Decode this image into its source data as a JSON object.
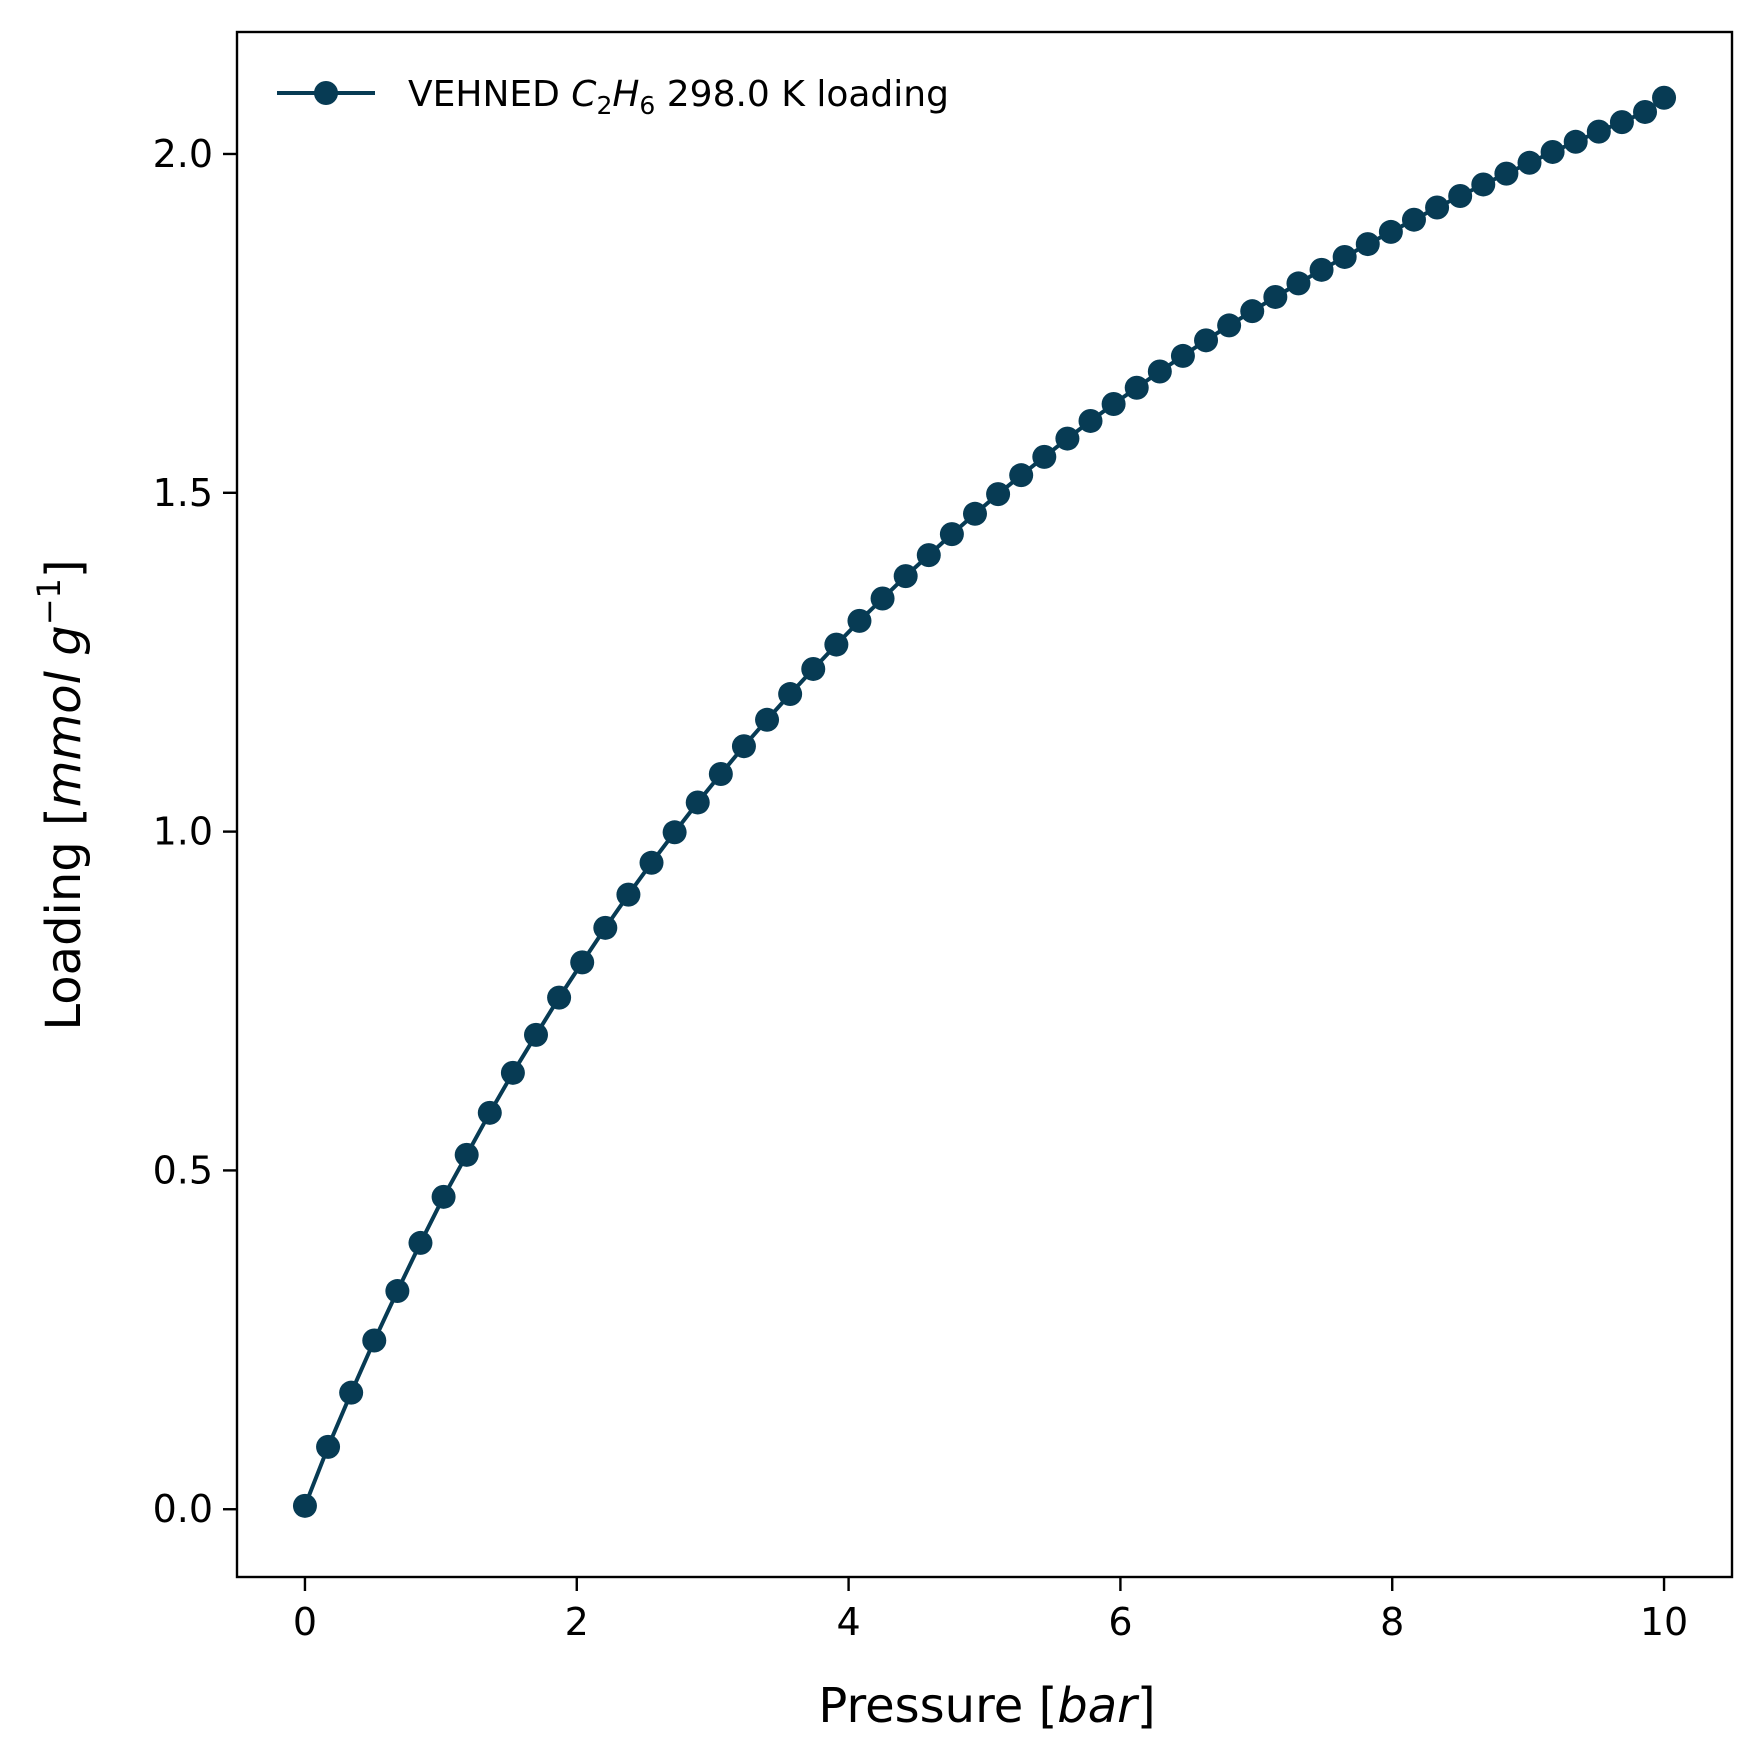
{
  "colors": {
    "series": "#073b54",
    "axes": "#000000",
    "background": "#ffffff"
  },
  "chart_data": {
    "type": "line",
    "markers": true,
    "title": "",
    "xlabel": {
      "prefix": "Pressure [",
      "unit": "bar",
      "suffix": "]"
    },
    "ylabel": {
      "prefix": "Loading [",
      "unit": "mmol g",
      "sup": "−1",
      "suffix": "]"
    },
    "xlim": [
      -0.5,
      10.5
    ],
    "ylim": [
      -0.1,
      2.18
    ],
    "xticks": [
      0,
      2,
      4,
      6,
      8,
      10
    ],
    "xtick_labels": [
      "0",
      "2",
      "4",
      "6",
      "8",
      "10"
    ],
    "yticks": [
      0.0,
      0.5,
      1.0,
      1.5,
      2.0
    ],
    "ytick_labels": [
      "0.0",
      "0.5",
      "1.0",
      "1.5",
      "2.0"
    ],
    "grid": false,
    "legend_position": "upper-left",
    "legend": {
      "prefix": "VEHNED ",
      "c": "C",
      "c_sub": "2",
      "h": "H",
      "h_sub": "6",
      "suffix": " 298.0 K loading"
    },
    "series": [
      {
        "x": [
          0.0,
          0.17,
          0.34,
          0.51,
          0.68,
          0.85,
          1.02,
          1.19,
          1.36,
          1.53,
          1.7,
          1.87,
          2.04,
          2.21,
          2.38,
          2.55,
          2.72,
          2.89,
          3.06,
          3.23,
          3.4,
          3.57,
          3.74,
          3.91,
          4.08,
          4.25,
          4.42,
          4.59,
          4.76,
          4.93,
          5.1,
          5.27,
          5.44,
          5.61,
          5.78,
          5.95,
          6.12,
          6.29,
          6.46,
          6.63,
          6.8,
          6.97,
          7.14,
          7.31,
          7.48,
          7.65,
          7.82,
          7.99,
          8.16,
          8.33,
          8.5,
          8.67,
          8.84,
          9.01,
          9.18,
          9.35,
          9.52,
          9.69,
          9.86,
          10.0
        ],
        "y": [
          0.005,
          0.092,
          0.172,
          0.249,
          0.322,
          0.393,
          0.461,
          0.523,
          0.585,
          0.644,
          0.7,
          0.755,
          0.807,
          0.858,
          0.907,
          0.954,
          0.999,
          1.043,
          1.085,
          1.126,
          1.165,
          1.203,
          1.24,
          1.276,
          1.311,
          1.344,
          1.377,
          1.408,
          1.439,
          1.469,
          1.498,
          1.526,
          1.553,
          1.58,
          1.606,
          1.631,
          1.655,
          1.679,
          1.702,
          1.725,
          1.747,
          1.768,
          1.789,
          1.809,
          1.829,
          1.848,
          1.867,
          1.885,
          1.903,
          1.921,
          1.938,
          1.955,
          1.971,
          1.987,
          2.003,
          2.018,
          2.033,
          2.047,
          2.062,
          2.083
        ]
      }
    ]
  }
}
